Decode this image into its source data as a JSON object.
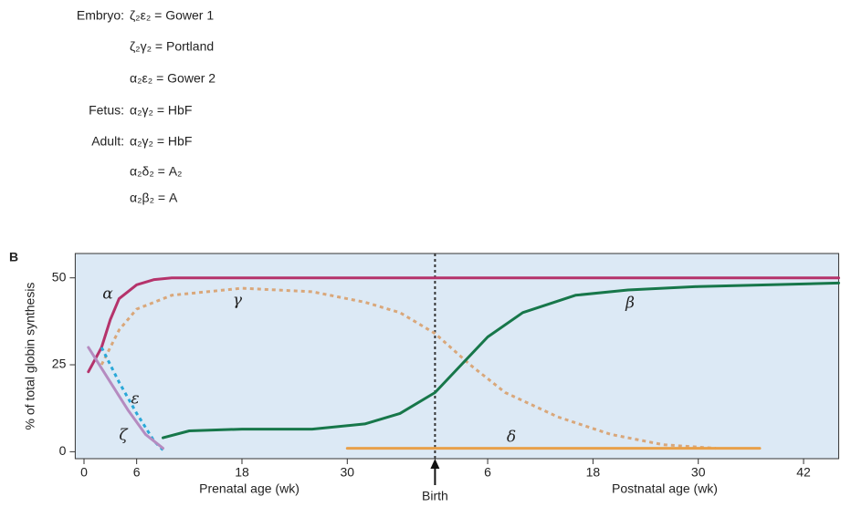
{
  "formulas": [
    {
      "stage": "Embryo:",
      "formula": "ζ₂ε₂ = Gower 1"
    },
    {
      "formula": "ζ₂γ₂ = Portland"
    },
    {
      "formula": "α₂ε₂ = Gower 2"
    },
    {
      "stage": "Fetus:",
      "formula": "α₂γ₂ = HbF"
    },
    {
      "stage": "Adult:",
      "formula": "α₂γ₂ = HbF"
    },
    {
      "formula": "α₂δ₂ = A₂"
    },
    {
      "formula": "α₂β₂ = A"
    }
  ],
  "chart_data": {
    "type": "line",
    "panel_label": "B",
    "ylabel": "% of total globin synthesis",
    "xlabels": [
      "Prenatal age (wk)",
      "Postnatal age (wk)"
    ],
    "birth": {
      "x": 40,
      "label": "Birth"
    },
    "xlim": [
      -1,
      86
    ],
    "xticks": [
      0,
      6,
      18,
      30,
      {
        "value": 46,
        "label": "6"
      },
      {
        "value": 58,
        "label": "18"
      },
      {
        "value": 70,
        "label": "30"
      },
      {
        "value": 82,
        "label": "42"
      }
    ],
    "ylim": [
      -2,
      57
    ],
    "yticks": [
      0,
      25,
      50
    ],
    "series": [
      {
        "name": "α",
        "color": "#b5336b",
        "dashed": false,
        "x": [
          0.5,
          2,
          3,
          4,
          6,
          8,
          10,
          86
        ],
        "values": [
          23,
          30,
          38,
          44,
          48,
          49.5,
          50,
          50
        ]
      },
      {
        "name": "γ",
        "color": "#d9a77a",
        "dashed": true,
        "x": [
          2,
          4,
          6,
          10,
          18,
          26,
          32,
          36,
          40,
          44,
          48,
          54,
          60,
          66,
          72
        ],
        "values": [
          25,
          35,
          41,
          45,
          47,
          46,
          43,
          40,
          34,
          25,
          17,
          10,
          5,
          2,
          1
        ]
      },
      {
        "name": "β",
        "color": "#17774a",
        "dashed": false,
        "x": [
          9,
          12,
          18,
          26,
          32,
          36,
          40,
          43,
          46,
          50,
          56,
          62,
          70,
          86
        ],
        "values": [
          4,
          6,
          6.5,
          6.5,
          8,
          11,
          17,
          25,
          33,
          40,
          45,
          46.5,
          47.5,
          48.5
        ]
      },
      {
        "name": "ε",
        "color": "#2aa8d8",
        "dashed": true,
        "x": [
          2,
          4,
          6,
          8,
          9
        ],
        "values": [
          30,
          20,
          11,
          3,
          0.5
        ]
      },
      {
        "name": "ζ",
        "color": "#b58bc0",
        "dashed": false,
        "x": [
          0.5,
          3,
          5,
          7,
          9
        ],
        "values": [
          30,
          20,
          12,
          5,
          1
        ]
      },
      {
        "name": "δ",
        "color": "#e8a04a",
        "dashed": false,
        "x": [
          30,
          77
        ],
        "values": [
          1,
          1
        ]
      }
    ]
  }
}
